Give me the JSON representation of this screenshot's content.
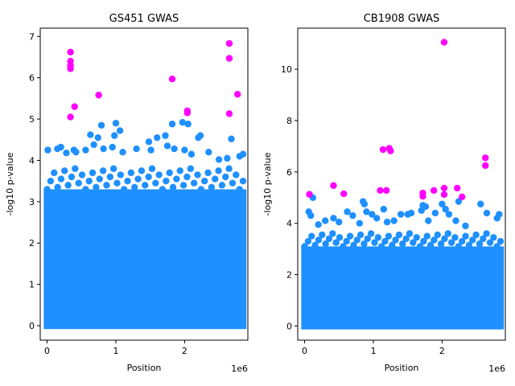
{
  "chart_data": [
    {
      "type": "scatter",
      "title": "GS451 GWAS",
      "xlabel": "Position",
      "ylabel": "-log10 p-value",
      "x_offset_label": "1e6",
      "xlim": [
        -100000,
        2920000
      ],
      "ylim": [
        -0.35,
        7.2
      ],
      "xticks": [
        0,
        1000000,
        2000000
      ],
      "xtick_labels": [
        "0",
        "1",
        "2"
      ],
      "yticks": [
        0,
        1,
        2,
        3,
        4,
        5,
        6,
        7
      ],
      "ytick_labels": [
        "0",
        "1",
        "2",
        "3",
        "4",
        "5",
        "6",
        "7"
      ],
      "x_extent": [
        0,
        2850000
      ],
      "bulk_max": 3.3,
      "grid": false,
      "colors": {
        "base": "#1e90ff",
        "significant": "#ff00ff"
      },
      "top_points": [
        {
          "x": 10000,
          "y": 4.25
        },
        {
          "x": 150000,
          "y": 4.28
        },
        {
          "x": 200000,
          "y": 4.32
        },
        {
          "x": 280000,
          "y": 4.18
        },
        {
          "x": 390000,
          "y": 4.25
        },
        {
          "x": 420000,
          "y": 4.2
        },
        {
          "x": 560000,
          "y": 4.25
        },
        {
          "x": 630000,
          "y": 4.62
        },
        {
          "x": 680000,
          "y": 4.38
        },
        {
          "x": 740000,
          "y": 4.55
        },
        {
          "x": 790000,
          "y": 4.85
        },
        {
          "x": 820000,
          "y": 4.28
        },
        {
          "x": 950000,
          "y": 4.32
        },
        {
          "x": 980000,
          "y": 4.6
        },
        {
          "x": 1000000,
          "y": 4.9
        },
        {
          "x": 1060000,
          "y": 4.72
        },
        {
          "x": 1100000,
          "y": 4.2
        },
        {
          "x": 1300000,
          "y": 4.28
        },
        {
          "x": 1480000,
          "y": 4.45
        },
        {
          "x": 1510000,
          "y": 4.25
        },
        {
          "x": 1600000,
          "y": 4.55
        },
        {
          "x": 1720000,
          "y": 4.6
        },
        {
          "x": 1750000,
          "y": 4.35
        },
        {
          "x": 1820000,
          "y": 4.88
        },
        {
          "x": 1850000,
          "y": 4.28
        },
        {
          "x": 1970000,
          "y": 4.92
        },
        {
          "x": 2000000,
          "y": 4.25
        },
        {
          "x": 2050000,
          "y": 4.88
        },
        {
          "x": 2100000,
          "y": 4.15
        },
        {
          "x": 2200000,
          "y": 4.55
        },
        {
          "x": 2230000,
          "y": 4.6
        },
        {
          "x": 2350000,
          "y": 4.2
        },
        {
          "x": 2500000,
          "y": 4.02
        },
        {
          "x": 2620000,
          "y": 4.05
        },
        {
          "x": 2680000,
          "y": 4.52
        },
        {
          "x": 2800000,
          "y": 4.1
        },
        {
          "x": 2850000,
          "y": 4.15
        }
      ],
      "significant_points": [
        {
          "x": 340000,
          "y": 6.62
        },
        {
          "x": 340000,
          "y": 6.4
        },
        {
          "x": 340000,
          "y": 6.3
        },
        {
          "x": 340000,
          "y": 6.22
        },
        {
          "x": 340000,
          "y": 5.05
        },
        {
          "x": 400000,
          "y": 5.3
        },
        {
          "x": 750000,
          "y": 5.58
        },
        {
          "x": 1820000,
          "y": 5.97
        },
        {
          "x": 2040000,
          "y": 5.2
        },
        {
          "x": 2040000,
          "y": 5.15
        },
        {
          "x": 2650000,
          "y": 6.83
        },
        {
          "x": 2650000,
          "y": 6.47
        },
        {
          "x": 2650000,
          "y": 5.13
        },
        {
          "x": 2770000,
          "y": 5.6
        }
      ]
    },
    {
      "type": "scatter",
      "title": "CB1908 GWAS",
      "xlabel": "Position",
      "ylabel": "-log10 p-value",
      "x_offset_label": "1e6",
      "xlim": [
        -100000,
        2920000
      ],
      "ylim": [
        -0.55,
        11.6
      ],
      "xticks": [
        0,
        1000000,
        2000000
      ],
      "xtick_labels": [
        "0",
        "1",
        "2"
      ],
      "yticks": [
        0,
        2,
        4,
        6,
        8,
        10
      ],
      "ytick_labels": [
        "0",
        "2",
        "4",
        "6",
        "8",
        "10"
      ],
      "x_extent": [
        0,
        2850000
      ],
      "bulk_max": 3.1,
      "grid": false,
      "colors": {
        "base": "#1e90ff",
        "significant": "#ff00ff"
      },
      "top_points": [
        {
          "x": 60000,
          "y": 4.45
        },
        {
          "x": 90000,
          "y": 4.3
        },
        {
          "x": 120000,
          "y": 5.0
        },
        {
          "x": 200000,
          "y": 3.95
        },
        {
          "x": 300000,
          "y": 4.1
        },
        {
          "x": 420000,
          "y": 4.2
        },
        {
          "x": 500000,
          "y": 4.05
        },
        {
          "x": 620000,
          "y": 4.45
        },
        {
          "x": 700000,
          "y": 4.3
        },
        {
          "x": 800000,
          "y": 4.0
        },
        {
          "x": 850000,
          "y": 4.85
        },
        {
          "x": 870000,
          "y": 4.75
        },
        {
          "x": 900000,
          "y": 4.45
        },
        {
          "x": 980000,
          "y": 4.35
        },
        {
          "x": 1050000,
          "y": 4.2
        },
        {
          "x": 1150000,
          "y": 4.55
        },
        {
          "x": 1200000,
          "y": 4.05
        },
        {
          "x": 1300000,
          "y": 4.1
        },
        {
          "x": 1400000,
          "y": 4.35
        },
        {
          "x": 1500000,
          "y": 4.35
        },
        {
          "x": 1550000,
          "y": 4.4
        },
        {
          "x": 1700000,
          "y": 4.5
        },
        {
          "x": 1720000,
          "y": 4.7
        },
        {
          "x": 1760000,
          "y": 4.65
        },
        {
          "x": 1800000,
          "y": 4.1
        },
        {
          "x": 1900000,
          "y": 4.4
        },
        {
          "x": 2000000,
          "y": 4.75
        },
        {
          "x": 2050000,
          "y": 4.55
        },
        {
          "x": 2100000,
          "y": 4.35
        },
        {
          "x": 2200000,
          "y": 4.1
        },
        {
          "x": 2240000,
          "y": 4.85
        },
        {
          "x": 2340000,
          "y": 3.9
        },
        {
          "x": 2560000,
          "y": 4.75
        },
        {
          "x": 2650000,
          "y": 4.4
        },
        {
          "x": 2800000,
          "y": 4.2
        },
        {
          "x": 2830000,
          "y": 4.35
        }
      ],
      "significant_points": [
        {
          "x": 70000,
          "y": 5.13
        },
        {
          "x": 420000,
          "y": 5.47
        },
        {
          "x": 570000,
          "y": 5.15
        },
        {
          "x": 1100000,
          "y": 5.28
        },
        {
          "x": 1140000,
          "y": 6.87
        },
        {
          "x": 1190000,
          "y": 5.28
        },
        {
          "x": 1230000,
          "y": 6.92
        },
        {
          "x": 1250000,
          "y": 6.82
        },
        {
          "x": 1720000,
          "y": 5.18
        },
        {
          "x": 1720000,
          "y": 5.05
        },
        {
          "x": 1880000,
          "y": 5.28
        },
        {
          "x": 2030000,
          "y": 11.05
        },
        {
          "x": 2030000,
          "y": 5.37
        },
        {
          "x": 2030000,
          "y": 5.12
        },
        {
          "x": 2220000,
          "y": 5.37
        },
        {
          "x": 2290000,
          "y": 5.03
        },
        {
          "x": 2630000,
          "y": 6.55
        },
        {
          "x": 2630000,
          "y": 6.25
        }
      ]
    }
  ]
}
